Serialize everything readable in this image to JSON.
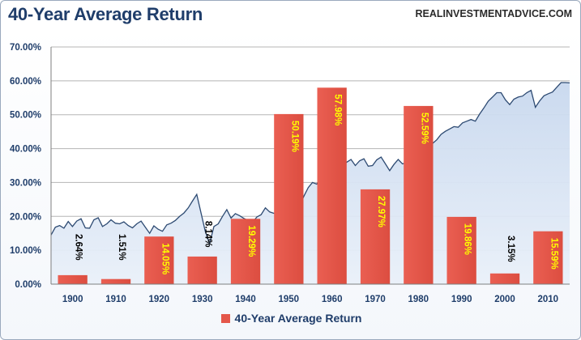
{
  "header": {
    "title": "40-Year Average Return",
    "source": "REALINVESTMENTADVICE.COM"
  },
  "colors": {
    "bar": "#e4574a",
    "bar_label_bright": "#ffff00",
    "bar_label_dark": "#000000",
    "background_area_fill": "#b7cbe6",
    "background_line": "#2d4a72",
    "title": "#1f3d6a",
    "grid": "#b5b5b5"
  },
  "chart_data": {
    "type": "bar",
    "title": "40-Year Average Return",
    "categories": [
      "1900",
      "1910",
      "1920",
      "1930",
      "1940",
      "1950",
      "1960",
      "1970",
      "1980",
      "1990",
      "2000",
      "2010"
    ],
    "series": [
      {
        "name": "40-Year Average Return",
        "values": [
          2.64,
          1.51,
          14.05,
          8.14,
          19.29,
          50.19,
          57.98,
          27.97,
          52.59,
          19.86,
          3.15,
          15.59
        ],
        "labels": [
          "2.64%",
          "1.51%",
          "14.05%",
          "8.14%",
          "19.29%",
          "50.19%",
          "57.98%",
          "27.97%",
          "52.59%",
          "19.86%",
          "3.15%",
          "15.59%"
        ]
      }
    ],
    "background_area": {
      "description_unlabeled": "stock index level, log scale, plotted behind bars",
      "x": [
        1895,
        1896,
        1897,
        1898,
        1899,
        1900,
        1901,
        1902,
        1903,
        1904,
        1905,
        1906,
        1907,
        1908,
        1909,
        1910,
        1911,
        1912,
        1913,
        1914,
        1915,
        1916,
        1917,
        1918,
        1919,
        1920,
        1921,
        1922,
        1923,
        1924,
        1925,
        1926,
        1927,
        1928,
        1929,
        1930,
        1931,
        1932,
        1933,
        1934,
        1935,
        1936,
        1937,
        1938,
        1939,
        1940,
        1941,
        1942,
        1943,
        1944,
        1945,
        1946,
        1947,
        1948,
        1949,
        1950,
        1951,
        1952,
        1953,
        1954,
        1955,
        1956,
        1957,
        1958,
        1959,
        1960,
        1961,
        1962,
        1963,
        1964,
        1965,
        1966,
        1967,
        1968,
        1969,
        1970,
        1971,
        1972,
        1973,
        1974,
        1975,
        1976,
        1977,
        1978,
        1979,
        1980,
        1981,
        1982,
        1983,
        1984,
        1985,
        1986,
        1987,
        1988,
        1989,
        1990,
        1991,
        1992,
        1993,
        1994,
        1995,
        1996,
        1997,
        1998,
        1999,
        2000,
        2001,
        2002,
        2003,
        2004,
        2005,
        2006,
        2007,
        2008,
        2009,
        2010,
        2011,
        2012,
        2013,
        2014,
        2015,
        2016
      ],
      "y": [
        14.5,
        16.8,
        17.3,
        16.5,
        18.5,
        17.0,
        18.6,
        19.3,
        16.6,
        16.5,
        19.0,
        19.6,
        17.0,
        17.8,
        19.0,
        18.0,
        17.8,
        18.4,
        17.3,
        16.6,
        17.8,
        18.6,
        16.8,
        15.0,
        17.2,
        16.2,
        15.6,
        17.5,
        18.0,
        18.8,
        20.0,
        21.0,
        22.5,
        24.5,
        26.5,
        21.0,
        15.5,
        12.0,
        17.0,
        17.8,
        20.0,
        22.0,
        19.5,
        20.8,
        20.2,
        19.4,
        18.8,
        18.2,
        19.8,
        20.5,
        22.5,
        21.3,
        20.9,
        20.9,
        21.8,
        22.5,
        23.2,
        24.0,
        23.2,
        26.0,
        28.5,
        30.0,
        29.5,
        31.7,
        33.2,
        33.0,
        35.0,
        33.5,
        35.0,
        36.0,
        36.8,
        35.0,
        36.4,
        37.0,
        34.8,
        35.0,
        36.7,
        37.5,
        35.5,
        33.5,
        35.3,
        36.8,
        35.5,
        35.8,
        37.0,
        38.2,
        37.5,
        38.4,
        41.0,
        41.5,
        42.6,
        44.2,
        45.1,
        45.8,
        46.5,
        46.3,
        47.6,
        48.1,
        48.6,
        48.1,
        50.2,
        52.0,
        54.0,
        55.2,
        56.5,
        56.5,
        54.4,
        53.0,
        54.6,
        55.2,
        55.5,
        56.5,
        57.2,
        52.2,
        54.1,
        55.6,
        56.2,
        56.7,
        58.1,
        59.5,
        59.5,
        59.4
      ],
      "ylim": [
        0,
        70
      ]
    },
    "xlim": [
      1895,
      2016
    ],
    "ylim": [
      0,
      70
    ],
    "yticks": [
      "0.00%",
      "10.00%",
      "20.00%",
      "30.00%",
      "40.00%",
      "50.00%",
      "60.00%",
      "70.00%"
    ],
    "legend": "bottom-center",
    "grid": true
  }
}
